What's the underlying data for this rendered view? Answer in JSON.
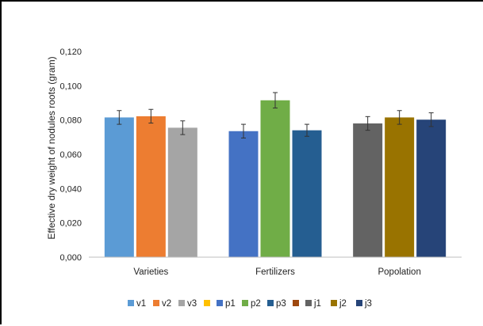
{
  "chart_data": {
    "type": "bar",
    "title": "",
    "xlabel": "",
    "ylabel": "Effective dry weight of nodules roots (gram)",
    "ylim": [
      0,
      0.12
    ],
    "yticks": [
      "0,000",
      "0,020",
      "0,040",
      "0,060",
      "0,080",
      "0,100",
      "0,120"
    ],
    "grid": false,
    "legend_position": "bottom",
    "categories": [
      "Varieties",
      "Fertilizers",
      "Popolation"
    ],
    "series": [
      {
        "name": "v1",
        "color": "#5B9BD5",
        "values": [
          0.0815,
          null,
          null
        ],
        "errors": [
          0.004,
          null,
          null
        ]
      },
      {
        "name": "v2",
        "color": "#ED7D31",
        "values": [
          0.0822,
          null,
          null
        ],
        "errors": [
          0.004,
          null,
          null
        ]
      },
      {
        "name": "v3",
        "color": "#A5A5A5",
        "values": [
          0.0755,
          null,
          null
        ],
        "errors": [
          0.004,
          null,
          null
        ]
      },
      {
        "name": "",
        "color": "#FFC000",
        "values": [
          null,
          null,
          null
        ],
        "errors": [
          null,
          null,
          null
        ]
      },
      {
        "name": "p1",
        "color": "#4472C4",
        "values": [
          null,
          0.0735,
          null
        ],
        "errors": [
          null,
          0.004,
          null
        ]
      },
      {
        "name": "p2",
        "color": "#70AD47",
        "values": [
          null,
          0.0915,
          null
        ],
        "errors": [
          null,
          0.0045,
          null
        ]
      },
      {
        "name": "p3",
        "color": "#255E91",
        "values": [
          null,
          0.074,
          null
        ],
        "errors": [
          null,
          0.0035,
          null
        ]
      },
      {
        "name": "",
        "color": "#9E480E",
        "values": [
          null,
          null,
          null
        ],
        "errors": [
          null,
          null,
          null
        ]
      },
      {
        "name": "j1",
        "color": "#636363",
        "values": [
          null,
          null,
          0.078
        ],
        "errors": [
          null,
          null,
          0.004
        ]
      },
      {
        "name": "j2",
        "color": "#997300",
        "values": [
          null,
          null,
          0.0815
        ],
        "errors": [
          null,
          null,
          0.004
        ]
      },
      {
        "name": "j3",
        "color": "#264478",
        "values": [
          null,
          null,
          0.0802
        ],
        "errors": [
          null,
          null,
          0.004
        ]
      }
    ]
  }
}
